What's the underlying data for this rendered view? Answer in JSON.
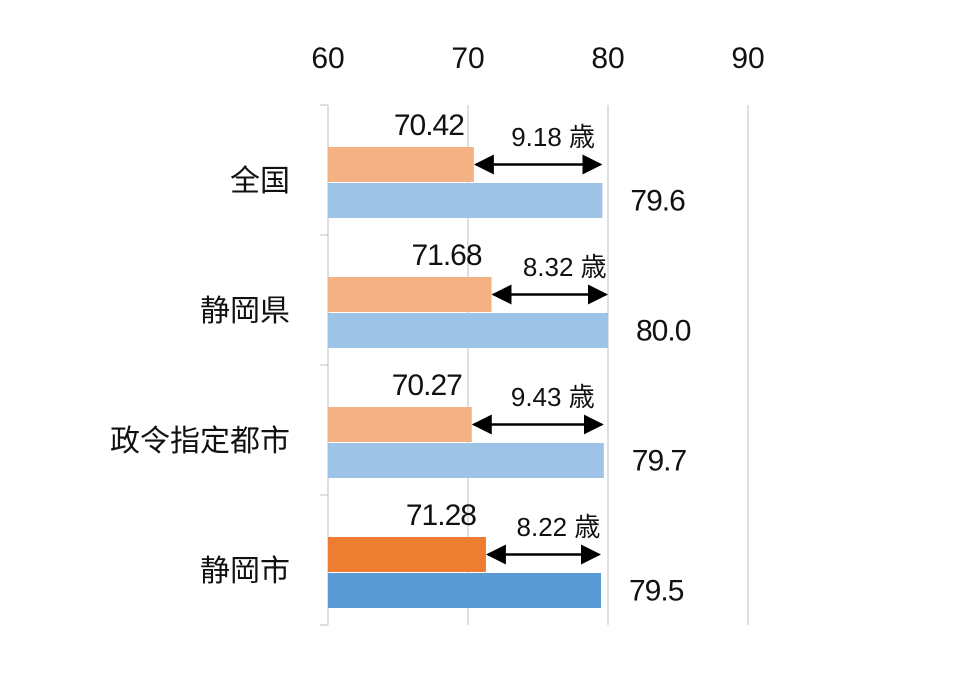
{
  "chart_data": {
    "type": "bar",
    "orientation": "horizontal",
    "categories": [
      "全国",
      "静岡県",
      "政令指定都市",
      "静岡市"
    ],
    "series": [
      {
        "colors": [
          "#f4b183",
          "#f4b183",
          "#f4b183",
          "#ed7d31"
        ],
        "values": [
          70.42,
          71.68,
          70.27,
          71.28
        ]
      },
      {
        "colors": [
          "#9dc3e6",
          "#9dc3e6",
          "#9dc3e6",
          "#5b9bd5"
        ],
        "values": [
          79.6,
          80,
          79.7,
          79.5
        ],
        "value_labels": [
          "79.6",
          "80.0",
          "79.7",
          "79.5"
        ]
      }
    ],
    "annotations": [
      "9.18 歳",
      "8.32 歳",
      "9.43 歳",
      "8.22 歳"
    ],
    "xlim": [
      60,
      90
    ],
    "xticks": [
      60,
      70,
      80,
      90
    ],
    "grid": true
  }
}
